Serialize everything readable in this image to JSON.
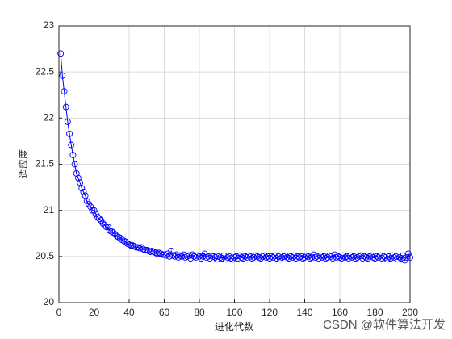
{
  "chart_data": {
    "type": "line",
    "xlabel": "进化代数",
    "ylabel": "适应度",
    "watermark": "CSDN @软件算法开发",
    "grid": true,
    "marker": "circle",
    "xlim": [
      0,
      200
    ],
    "xticks": [
      0,
      20,
      40,
      60,
      80,
      100,
      120,
      140,
      160,
      180,
      200
    ],
    "ylim": [
      20,
      23
    ],
    "yticks": [
      20,
      20.5,
      21,
      21.5,
      22,
      22.5,
      23
    ],
    "x": [
      1,
      2,
      3,
      4,
      5,
      6,
      7,
      8,
      9,
      10,
      11,
      12,
      13,
      14,
      15,
      16,
      17,
      18,
      19,
      20,
      21,
      22,
      23,
      24,
      25,
      26,
      27,
      28,
      29,
      30,
      31,
      32,
      33,
      34,
      35,
      36,
      37,
      38,
      39,
      40,
      41,
      42,
      43,
      44,
      45,
      46,
      47,
      48,
      49,
      50,
      51,
      52,
      53,
      54,
      55,
      56,
      57,
      58,
      59,
      60,
      61,
      62,
      63,
      64,
      65,
      66,
      67,
      68,
      69,
      70,
      71,
      72,
      73,
      74,
      75,
      76,
      77,
      78,
      79,
      80,
      81,
      82,
      83,
      84,
      85,
      86,
      87,
      88,
      89,
      90,
      91,
      92,
      93,
      94,
      95,
      96,
      97,
      98,
      99,
      100,
      101,
      102,
      103,
      104,
      105,
      106,
      107,
      108,
      109,
      110,
      111,
      112,
      113,
      114,
      115,
      116,
      117,
      118,
      119,
      120,
      121,
      122,
      123,
      124,
      125,
      126,
      127,
      128,
      129,
      130,
      131,
      132,
      133,
      134,
      135,
      136,
      137,
      138,
      139,
      140,
      141,
      142,
      143,
      144,
      145,
      146,
      147,
      148,
      149,
      150,
      151,
      152,
      153,
      154,
      155,
      156,
      157,
      158,
      159,
      160,
      161,
      162,
      163,
      164,
      165,
      166,
      167,
      168,
      169,
      170,
      171,
      172,
      173,
      174,
      175,
      176,
      177,
      178,
      179,
      180,
      181,
      182,
      183,
      184,
      185,
      186,
      187,
      188,
      189,
      190,
      191,
      192,
      193,
      194,
      195,
      196,
      197,
      198,
      199,
      200
    ],
    "series": [
      {
        "name": "适应度",
        "color": "#0000ff",
        "values": [
          22.7,
          22.46,
          22.29,
          22.12,
          21.96,
          21.83,
          21.71,
          21.6,
          21.5,
          21.4,
          21.35,
          21.3,
          21.24,
          21.2,
          21.16,
          21.1,
          21.07,
          21.04,
          21.0,
          21.0,
          20.96,
          20.93,
          20.91,
          20.89,
          20.86,
          20.84,
          20.82,
          20.82,
          20.78,
          20.77,
          20.76,
          20.74,
          20.72,
          20.71,
          20.7,
          20.68,
          20.67,
          20.66,
          20.64,
          20.63,
          20.62,
          20.62,
          20.61,
          20.6,
          20.6,
          20.59,
          20.6,
          20.58,
          20.57,
          20.57,
          20.56,
          20.55,
          20.56,
          20.55,
          20.54,
          20.53,
          20.54,
          20.53,
          20.52,
          20.52,
          20.51,
          20.53,
          20.5,
          20.56,
          20.51,
          20.5,
          20.52,
          20.49,
          20.51,
          20.5,
          20.52,
          20.49,
          20.5,
          20.51,
          20.48,
          20.52,
          20.5,
          20.49,
          20.51,
          20.5,
          20.48,
          20.5,
          20.53,
          20.49,
          20.5,
          20.48,
          20.51,
          20.5,
          20.49,
          20.47,
          20.5,
          20.49,
          20.48,
          20.51,
          20.47,
          20.49,
          20.5,
          20.48,
          20.47,
          20.49,
          20.5,
          20.48,
          20.51,
          20.49,
          20.48,
          20.5,
          20.49,
          20.51,
          20.5,
          20.48,
          20.49,
          20.51,
          20.5,
          20.49,
          20.48,
          20.5,
          20.51,
          20.49,
          20.5,
          20.48,
          20.5,
          20.49,
          20.51,
          20.48,
          20.5,
          20.47,
          20.49,
          20.5,
          20.51,
          20.49,
          20.48,
          20.5,
          20.49,
          20.51,
          20.48,
          20.5,
          20.49,
          20.5,
          20.48,
          20.49,
          20.51,
          20.5,
          20.48,
          20.49,
          20.52,
          20.49,
          20.5,
          20.48,
          20.51,
          20.49,
          20.5,
          20.48,
          20.49,
          20.51,
          20.5,
          20.48,
          20.52,
          20.49,
          20.5,
          20.49,
          20.48,
          20.51,
          20.49,
          20.5,
          20.48,
          20.51,
          20.49,
          20.5,
          20.48,
          20.49,
          20.5,
          20.51,
          20.48,
          20.5,
          20.49,
          20.48,
          20.5,
          20.51,
          20.49,
          20.48,
          20.5,
          20.49,
          20.51,
          20.48,
          20.5,
          20.49,
          20.47,
          20.5,
          20.48,
          20.51,
          20.49,
          20.5,
          20.47,
          20.49,
          20.48,
          20.51,
          20.46,
          20.49,
          20.53,
          20.49
        ]
      }
    ]
  }
}
